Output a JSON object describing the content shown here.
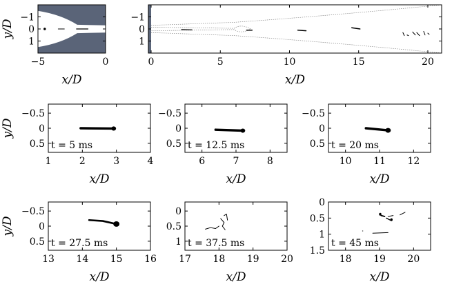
{
  "figure": {
    "caption": "",
    "nozzle_color": "#5a6478"
  },
  "chart_data": [
    {
      "id": "nozzle",
      "type": "scatter",
      "xlabel": "x/D",
      "ylabel": "y/D",
      "xlim": [
        -5,
        0
      ],
      "ylim": [
        -2,
        2
      ],
      "y_reversed": true,
      "xticks": [
        -5,
        0
      ],
      "yticks": [
        -1,
        0,
        1
      ],
      "droplets": [
        {
          "path": [
            [
              -4.5,
              0.0
            ]
          ],
          "w": 0.1
        },
        {
          "path": [
            [
              -3.5,
              0.0
            ],
            [
              -3.05,
              0.0
            ]
          ],
          "w": 0.06
        },
        {
          "path": [
            [
              -2.15,
              0.0
            ],
            [
              -1.3,
              0.0
            ]
          ],
          "w": 0.07
        }
      ]
    },
    {
      "id": "overview",
      "type": "scatter",
      "xlabel": "x/D",
      "ylabel": "y/D",
      "xlim": [
        -0.2,
        21
      ],
      "ylim": [
        -2,
        2
      ],
      "y_reversed": true,
      "xticks": [
        0,
        5,
        10,
        15,
        20
      ],
      "yticks": [
        -1,
        0,
        1
      ],
      "droplets": [
        {
          "path": [
            [
              2.2,
              0.05
            ],
            [
              2.95,
              0.08
            ]
          ],
          "w": 0.07
        },
        {
          "path": [
            [
              6.9,
              0.1
            ],
            [
              7.3,
              0.1
            ]
          ],
          "w": 0.08
        },
        {
          "path": [
            [
              10.6,
              0.1
            ],
            [
              11.2,
              0.15
            ]
          ],
          "w": 0.08
        },
        {
          "path": [
            [
              14.5,
              -0.1
            ],
            [
              15.1,
              0.0
            ]
          ],
          "w": 0.08
        },
        {
          "path": [
            [
              18.2,
              0.3
            ],
            [
              18.3,
              0.55
            ]
          ],
          "w": 0.04
        },
        {
          "path": [
            [
              18.9,
              0.25
            ],
            [
              19.1,
              0.5
            ]
          ],
          "w": 0.04
        },
        {
          "path": [
            [
              19.2,
              0.3
            ],
            [
              19.4,
              0.55
            ]
          ],
          "w": 0.04
        },
        {
          "path": [
            [
              19.7,
              0.2
            ],
            [
              19.8,
              0.5
            ]
          ],
          "w": 0.04
        },
        {
          "path": [
            [
              20.0,
              0.35
            ],
            [
              20.1,
              0.45
            ]
          ],
          "w": 0.04
        },
        {
          "path": [
            [
              18.5,
              0.5
            ],
            [
              18.6,
              0.55
            ]
          ],
          "w": 0.03
        }
      ]
    },
    {
      "id": "snap-1",
      "type": "scatter",
      "annotation": "t = 5 ms",
      "xlabel": "x/D",
      "ylabel": "y/D",
      "xlim": [
        1,
        4
      ],
      "ylim": [
        -0.8,
        0.8
      ],
      "y_reversed": true,
      "xticks": [
        1,
        2,
        3,
        4
      ],
      "yticks": [
        -0.5,
        0,
        0.5
      ],
      "droplets": [
        {
          "path": [
            [
              1.95,
              0.0
            ],
            [
              2.9,
              0.01
            ]
          ],
          "w": 0.08,
          "head": [
            2.92,
            0.01
          ],
          "r": 0.07
        }
      ]
    },
    {
      "id": "snap-2",
      "type": "scatter",
      "annotation": "t = 12.5 ms",
      "xlabel": "x/D",
      "ylabel": "y/D",
      "xlim": [
        5.5,
        8.5
      ],
      "ylim": [
        -0.8,
        0.8
      ],
      "y_reversed": true,
      "xticks": [
        6,
        7,
        8
      ],
      "yticks": [
        -0.5,
        0,
        0.5
      ],
      "droplets": [
        {
          "path": [
            [
              6.4,
              0.05
            ],
            [
              7.2,
              0.08
            ]
          ],
          "w": 0.08,
          "head": [
            7.2,
            0.08
          ],
          "r": 0.07
        }
      ]
    },
    {
      "id": "snap-3",
      "type": "scatter",
      "annotation": "t = 20 ms",
      "xlabel": "x/D",
      "ylabel": "y/D",
      "xlim": [
        9.5,
        12.5
      ],
      "ylim": [
        -0.8,
        0.8
      ],
      "y_reversed": true,
      "xticks": [
        10,
        11,
        12
      ],
      "yticks": [
        -0.5,
        0,
        0.5
      ],
      "droplets": [
        {
          "path": [
            [
              10.6,
              0.0
            ],
            [
              11.25,
              0.07
            ]
          ],
          "w": 0.08,
          "head": [
            11.25,
            0.07
          ],
          "r": 0.08
        }
      ]
    },
    {
      "id": "snap-4",
      "type": "scatter",
      "annotation": "t = 27.5 ms",
      "xlabel": "x/D",
      "ylabel": "y/D",
      "xlim": [
        13,
        16
      ],
      "ylim": [
        -0.8,
        0.8
      ],
      "y_reversed": true,
      "xticks": [
        13,
        14,
        15,
        16
      ],
      "yticks": [
        -0.5,
        0,
        0.5
      ],
      "droplets": [
        {
          "path": [
            [
              14.2,
              -0.2
            ],
            [
              14.6,
              -0.17
            ],
            [
              15.0,
              -0.07
            ]
          ],
          "w": 0.06,
          "head": [
            15.0,
            -0.07
          ],
          "r": 0.09
        }
      ]
    },
    {
      "id": "snap-5",
      "type": "scatter",
      "annotation": "t = 37.5 ms",
      "xlabel": "x/D",
      "ylabel": "y/D",
      "xlim": [
        17,
        20
      ],
      "ylim": [
        -0.3,
        1.3
      ],
      "y_reversed": true,
      "xticks": [
        17,
        18,
        19,
        20
      ],
      "yticks": [
        0,
        0.5,
        1
      ],
      "droplets": [
        {
          "path": [
            [
              17.6,
              0.6
            ],
            [
              17.75,
              0.55
            ],
            [
              17.9,
              0.58
            ],
            [
              18.0,
              0.5
            ]
          ],
          "w": 0.012
        },
        {
          "path": [
            [
              18.05,
              0.25
            ],
            [
              18.15,
              0.38
            ],
            [
              18.1,
              0.5
            ],
            [
              18.18,
              0.62
            ]
          ],
          "w": 0.012
        },
        {
          "path": [
            [
              18.15,
              0.15
            ],
            [
              18.22,
              0.1
            ],
            [
              18.25,
              0.3
            ]
          ],
          "w": 0.02
        }
      ]
    },
    {
      "id": "snap-6",
      "type": "scatter",
      "annotation": "t = 45 ms",
      "xlabel": "x/D",
      "ylabel": "y/D",
      "xlim": [
        17.5,
        20.5
      ],
      "ylim": [
        0,
        1.5
      ],
      "y_reversed": true,
      "xticks": [
        18,
        19,
        20
      ],
      "yticks": [
        0,
        0.5,
        1,
        1.5
      ],
      "droplets": [
        {
          "path": [
            [
              19.05,
              0.42
            ],
            [
              19.15,
              0.45
            ]
          ],
          "w": 0.04,
          "head": [
            19.02,
            0.38
          ],
          "r": 0.035
        },
        {
          "path": [
            [
              19.2,
              0.5
            ],
            [
              19.35,
              0.58
            ]
          ],
          "w": 0.03,
          "head": [
            19.35,
            0.55
          ],
          "r": 0.035
        },
        {
          "path": [
            [
              19.25,
              0.45
            ],
            [
              19.4,
              0.42
            ]
          ],
          "w": 0.015
        },
        {
          "path": [
            [
              19.6,
              0.4
            ],
            [
              19.75,
              0.32
            ]
          ],
          "w": 0.012
        },
        {
          "path": [
            [
              18.8,
              0.97
            ],
            [
              19.25,
              0.95
            ]
          ],
          "w": 0.02
        },
        {
          "path": [
            [
              18.5,
              0.9
            ],
            [
              18.51,
              0.9
            ]
          ],
          "w": 0.015
        }
      ]
    }
  ]
}
